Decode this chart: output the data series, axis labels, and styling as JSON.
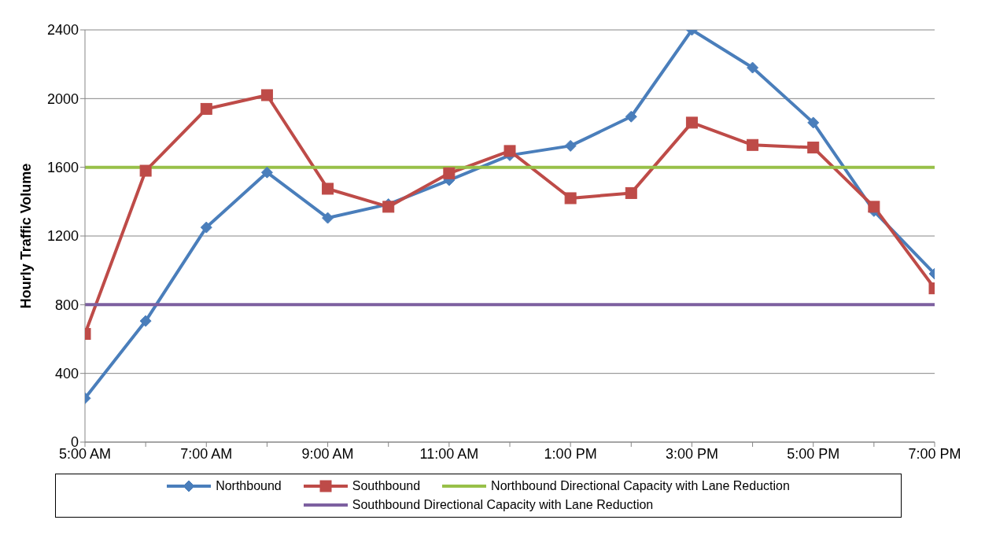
{
  "chart_data": {
    "type": "line",
    "ylabel": "Hourly Traffic Volume",
    "x": [
      5,
      6,
      7,
      8,
      9,
      10,
      11,
      12,
      13,
      14,
      15,
      16,
      17,
      18,
      19
    ],
    "xlim": [
      5,
      19
    ],
    "xticks": [
      {
        "value": 5,
        "label": "5:00 AM"
      },
      {
        "value": 6,
        "label": null
      },
      {
        "value": 7,
        "label": "7:00 AM"
      },
      {
        "value": 8,
        "label": null
      },
      {
        "value": 9,
        "label": "9:00 AM"
      },
      {
        "value": 10,
        "label": null
      },
      {
        "value": 11,
        "label": "11:00 AM"
      },
      {
        "value": 12,
        "label": null
      },
      {
        "value": 13,
        "label": "1:00 PM"
      },
      {
        "value": 14,
        "label": null
      },
      {
        "value": 15,
        "label": "3:00 PM"
      },
      {
        "value": 16,
        "label": null
      },
      {
        "value": 17,
        "label": "5:00 PM"
      },
      {
        "value": 18,
        "label": null
      },
      {
        "value": 19,
        "label": "7:00 PM"
      }
    ],
    "ylim": [
      0,
      2400
    ],
    "yticks": [
      0,
      400,
      800,
      1200,
      1600,
      2000,
      2400
    ],
    "grid": "y",
    "legend": "bottom",
    "series": [
      {
        "name": "Northbound",
        "color": "#4a7ebb",
        "marker": "diamond",
        "values": [
          255,
          705,
          1250,
          1570,
          1305,
          1385,
          1525,
          1670,
          1725,
          1895,
          2400,
          2180,
          1860,
          1345,
          980
        ]
      },
      {
        "name": "Southbound",
        "color": "#be4b48",
        "marker": "square",
        "values": [
          630,
          1580,
          1940,
          2020,
          1475,
          1370,
          1565,
          1695,
          1420,
          1450,
          1860,
          1730,
          1715,
          1370,
          895
        ]
      },
      {
        "name": "Northbound Directional Capacity with Lane Reduction",
        "color": "#98c049",
        "marker": "none",
        "values": [
          1600,
          1600,
          1600,
          1600,
          1600,
          1600,
          1600,
          1600,
          1600,
          1600,
          1600,
          1600,
          1600,
          1600,
          1600
        ]
      },
      {
        "name": "Southbound Directional Capacity with Lane Reduction",
        "color": "#7d60a0",
        "marker": "none",
        "values": [
          800,
          800,
          800,
          800,
          800,
          800,
          800,
          800,
          800,
          800,
          800,
          800,
          800,
          800,
          800
        ]
      }
    ]
  }
}
